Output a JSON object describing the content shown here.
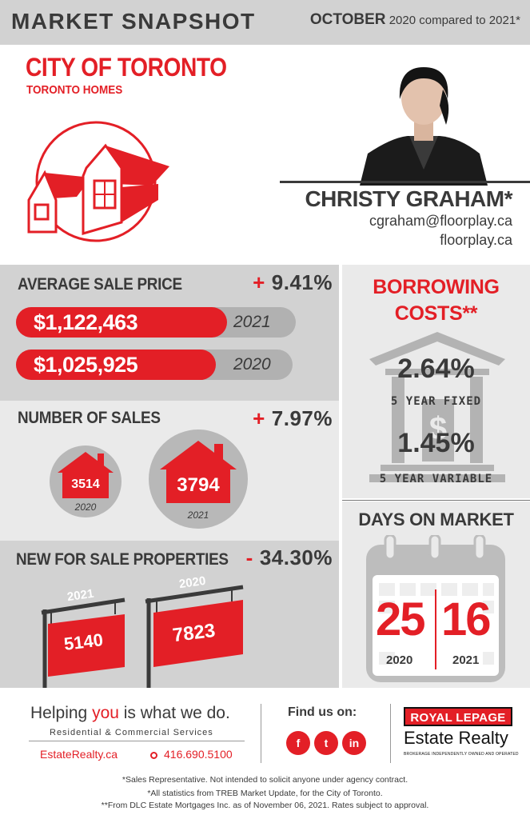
{
  "header": {
    "title": "MARKET SNAPSHOT",
    "month": "OCTOBER",
    "comparison": "2020 compared to 2021*"
  },
  "city": {
    "name": "CITY OF TORONTO",
    "subtitle": "TORONTO HOMES"
  },
  "agent": {
    "name": "CHRISTY GRAHAM*",
    "email": "cgraham@floorplay.ca",
    "website": "floorplay.ca"
  },
  "average_sale_price": {
    "title": "AVERAGE SALE PRICE",
    "change_sign": "+",
    "change": "9.41%",
    "rows": [
      {
        "value": "$1,122,463",
        "year": "2021"
      },
      {
        "value": "$1,025,925",
        "year": "2020"
      }
    ]
  },
  "number_of_sales": {
    "title": "NUMBER OF SALES",
    "change_sign": "+",
    "change": "7.97%",
    "items": [
      {
        "value": "3514",
        "year": "2020"
      },
      {
        "value": "3794",
        "year": "2021"
      }
    ]
  },
  "new_for_sale": {
    "title": "NEW FOR SALE PROPERTIES",
    "change_sign": "-",
    "change": "34.30%",
    "items": [
      {
        "value": "5140",
        "year": "2021"
      },
      {
        "value": "7823",
        "year": "2020"
      }
    ]
  },
  "borrowing": {
    "title_line1": "BORROWING",
    "title_line2": "COSTS**",
    "fixed_rate": "2.64%",
    "fixed_label": "5 YEAR FIXED",
    "variable_rate": "1.45%",
    "variable_label": "5 YEAR VARIABLE"
  },
  "days_on_market": {
    "title": "DAYS ON MARKET",
    "items": [
      {
        "value": "25",
        "year": "2020"
      },
      {
        "value": "16",
        "year": "2021"
      }
    ]
  },
  "footer": {
    "tagline_pre": "Helping ",
    "tagline_you": "you",
    "tagline_post": " is what we do.",
    "services": "Residential & Commercial Services",
    "site": "EstateRealty.ca",
    "phone": "416.690.5100",
    "find_us": "Find us on:",
    "social": [
      "f",
      "t",
      "in"
    ],
    "brand_box": "ROYAL LEPAGE",
    "brand_name": "Estate Realty",
    "brand_small": "BROKERAGE INDEPENDENTLY OWNED AND OPERATED",
    "notes": [
      "*Sales Representative. Not intended to solicit anyone under agency contract.",
      "*All statistics from TREB Market Update, for the City of Toronto.",
      "**From DLC Estate Mortgages Inc. as of November 06, 2021. Rates subject to approval."
    ]
  },
  "colors": {
    "accent": "#e31f26",
    "dark": "#3a3a3a",
    "panel": "#d2d2d2",
    "panel_light": "#eaeaea"
  }
}
